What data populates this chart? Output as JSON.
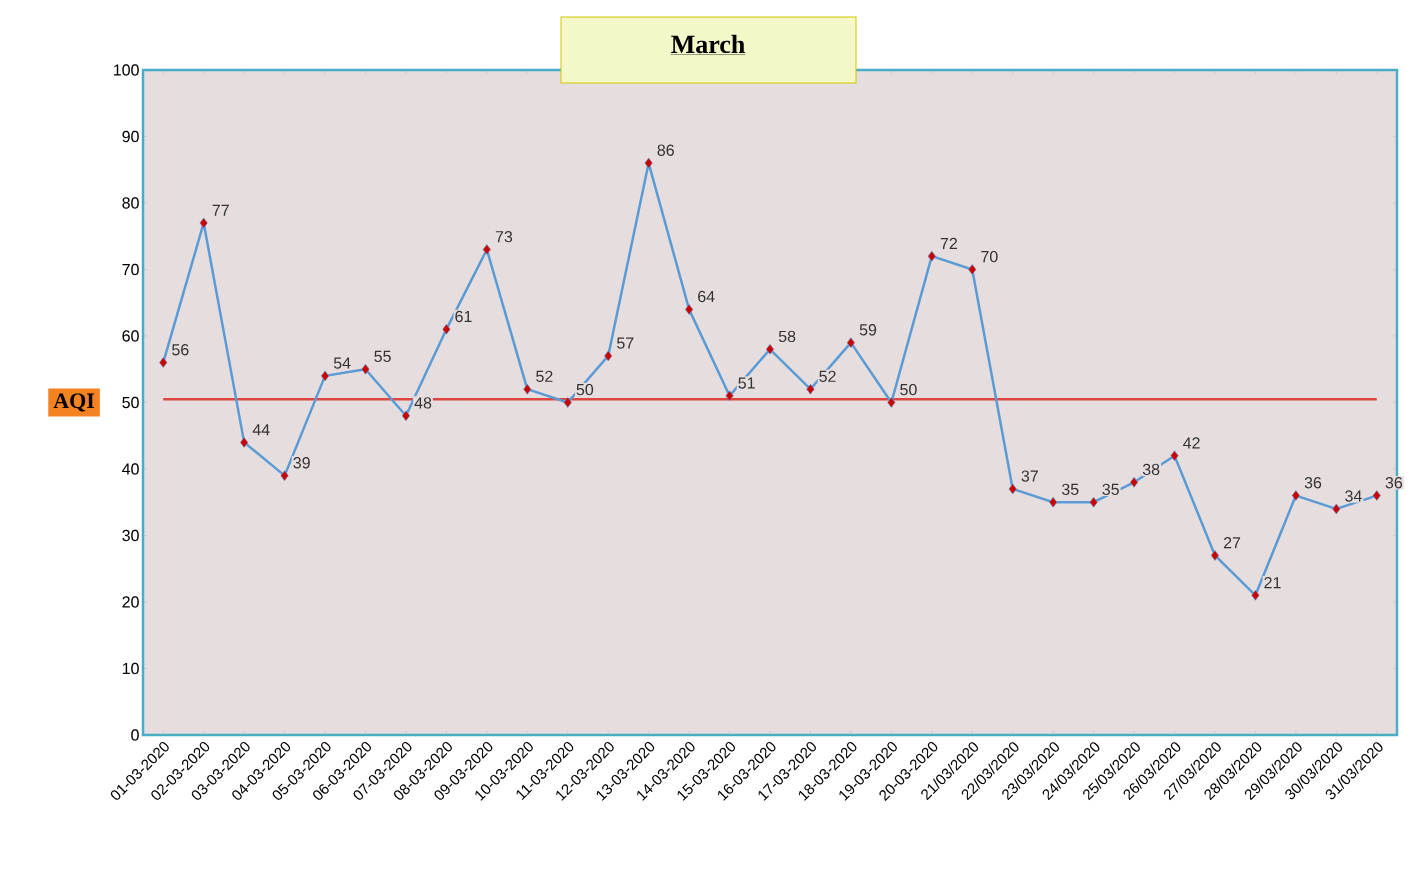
{
  "chart_data": {
    "type": "line",
    "title": "March",
    "ylabel": "AQI",
    "categories": [
      "01-03-2020",
      "02-03-2020",
      "03-03-2020",
      "04-03-2020",
      "05-03-2020",
      "06-03-2020",
      "07-03-2020",
      "08-03-2020",
      "09-03-2020",
      "10-03-2020",
      "11-03-2020",
      "12-03-2020",
      "13-03-2020",
      "14-03-2020",
      "15-03-2020",
      "16-03-2020",
      "17-03-2020",
      "18-03-2020",
      "19-03-2020",
      "20-03-2020",
      "21/03/2020",
      "22/03/2020",
      "23/03/2020",
      "24/03/2020",
      "25/03/2020",
      "26/03/2020",
      "27/03/2020",
      "28/03/2020",
      "29/03/2020",
      "30/03/2020",
      "31/03/2020"
    ],
    "values": [
      56,
      77,
      44,
      39,
      54,
      55,
      48,
      61,
      73,
      52,
      50,
      57,
      86,
      64,
      51,
      58,
      52,
      59,
      50,
      72,
      70,
      37,
      35,
      35,
      38,
      42,
      27,
      21,
      36,
      34,
      36
    ],
    "color": "#5b9bd5",
    "marker": "diamond",
    "data_labels": true,
    "ylim": [
      0,
      100
    ],
    "yticks": [
      0,
      10,
      20,
      30,
      40,
      50,
      60,
      70,
      80,
      90,
      100
    ],
    "ref_lines": [
      {
        "axis": "y",
        "value": 50.5,
        "color": "#e0443e"
      }
    ]
  }
}
